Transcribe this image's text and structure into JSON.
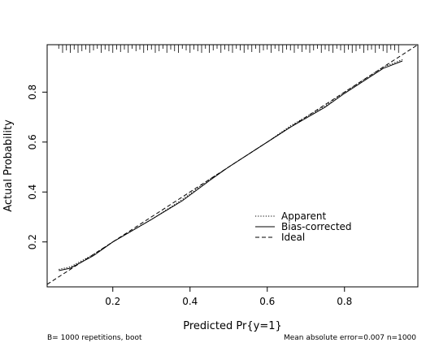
{
  "chart_data": {
    "type": "line",
    "title": "",
    "xlabel": "Predicted Pr{y=1}",
    "ylabel": "Actual Probability",
    "xlim": [
      0.03,
      0.99
    ],
    "ylim": [
      0.02,
      0.99
    ],
    "x_ticks": [
      "0.2",
      "0.4",
      "0.6",
      "0.8"
    ],
    "x_tick_values": [
      0.2,
      0.4,
      0.6,
      0.8
    ],
    "y_ticks": [
      "0.2",
      "0.4",
      "0.6",
      "0.8"
    ],
    "y_tick_values": [
      0.2,
      0.4,
      0.6,
      0.8
    ],
    "grid": false,
    "legend_position": "center-right",
    "series": [
      {
        "name": "Apparent",
        "style": "dotted",
        "x": [
          0.06,
          0.09,
          0.15,
          0.2,
          0.3,
          0.38,
          0.45,
          0.5,
          0.6,
          0.66,
          0.75,
          0.8,
          0.9,
          0.95
        ],
        "y": [
          0.09,
          0.1,
          0.15,
          0.2,
          0.29,
          0.37,
          0.45,
          0.5,
          0.6,
          0.665,
          0.745,
          0.8,
          0.9,
          0.93
        ]
      },
      {
        "name": "Bias-corrected",
        "style": "solid",
        "x": [
          0.06,
          0.09,
          0.15,
          0.2,
          0.3,
          0.38,
          0.45,
          0.5,
          0.6,
          0.66,
          0.75,
          0.8,
          0.9,
          0.95
        ],
        "y": [
          0.085,
          0.095,
          0.145,
          0.2,
          0.29,
          0.365,
          0.445,
          0.5,
          0.6,
          0.66,
          0.74,
          0.795,
          0.895,
          0.925
        ]
      },
      {
        "name": "Ideal",
        "style": "dashed",
        "x": [
          0.03,
          0.99
        ],
        "y": [
          0.03,
          0.99
        ]
      }
    ],
    "rug_x": [
      0.06,
      0.07,
      0.08,
      0.09,
      0.1,
      0.11,
      0.12,
      0.13,
      0.14,
      0.15,
      0.16,
      0.17,
      0.18,
      0.19,
      0.2,
      0.21,
      0.22,
      0.23,
      0.24,
      0.25,
      0.26,
      0.27,
      0.28,
      0.29,
      0.3,
      0.31,
      0.32,
      0.33,
      0.34,
      0.35,
      0.36,
      0.37,
      0.38,
      0.39,
      0.4,
      0.41,
      0.42,
      0.43,
      0.44,
      0.45,
      0.46,
      0.47,
      0.48,
      0.49,
      0.5,
      0.51,
      0.52,
      0.53,
      0.54,
      0.55,
      0.56,
      0.57,
      0.58,
      0.59,
      0.6,
      0.61,
      0.62,
      0.63,
      0.64,
      0.65,
      0.66,
      0.67,
      0.68,
      0.69,
      0.7,
      0.71,
      0.72,
      0.73,
      0.74,
      0.75,
      0.76,
      0.77,
      0.78,
      0.79,
      0.8,
      0.81,
      0.82,
      0.83,
      0.84,
      0.85,
      0.86,
      0.87,
      0.88,
      0.89,
      0.9,
      0.91,
      0.92,
      0.93,
      0.94
    ],
    "rug_heights": [
      0.5,
      1,
      0.7,
      1,
      0.6,
      1,
      0.8,
      0.6,
      1,
      0.7,
      0.5,
      1,
      0.6,
      0.8,
      1,
      0.6,
      0.9,
      0.6,
      1,
      0.5,
      0.8,
      0.6,
      1,
      0.7,
      0.6,
      1,
      0.8,
      0.5,
      1,
      0.6,
      0.8,
      1,
      0.5,
      0.7,
      1,
      0.6,
      0.8,
      1,
      0.5,
      1,
      0.7,
      0.5,
      1,
      0.6,
      0.8,
      1,
      0.5,
      0.7,
      1,
      0.6,
      0.9,
      0.5,
      1,
      0.7,
      0.6,
      1,
      0.5,
      0.8,
      1,
      0.6,
      0.7,
      1,
      0.5,
      0.9,
      0.6,
      1,
      0.7,
      0.5,
      1,
      0.6,
      0.8,
      1,
      0.5,
      0.7,
      1,
      0.6,
      1,
      0.8,
      0.5,
      1,
      0.7,
      0.6,
      1,
      0.5,
      0.8,
      1,
      0.6,
      0.7,
      1
    ]
  },
  "footer": {
    "left": "B= 1000 repetitions, boot",
    "right": "Mean absolute error=0.007 n=1000"
  }
}
